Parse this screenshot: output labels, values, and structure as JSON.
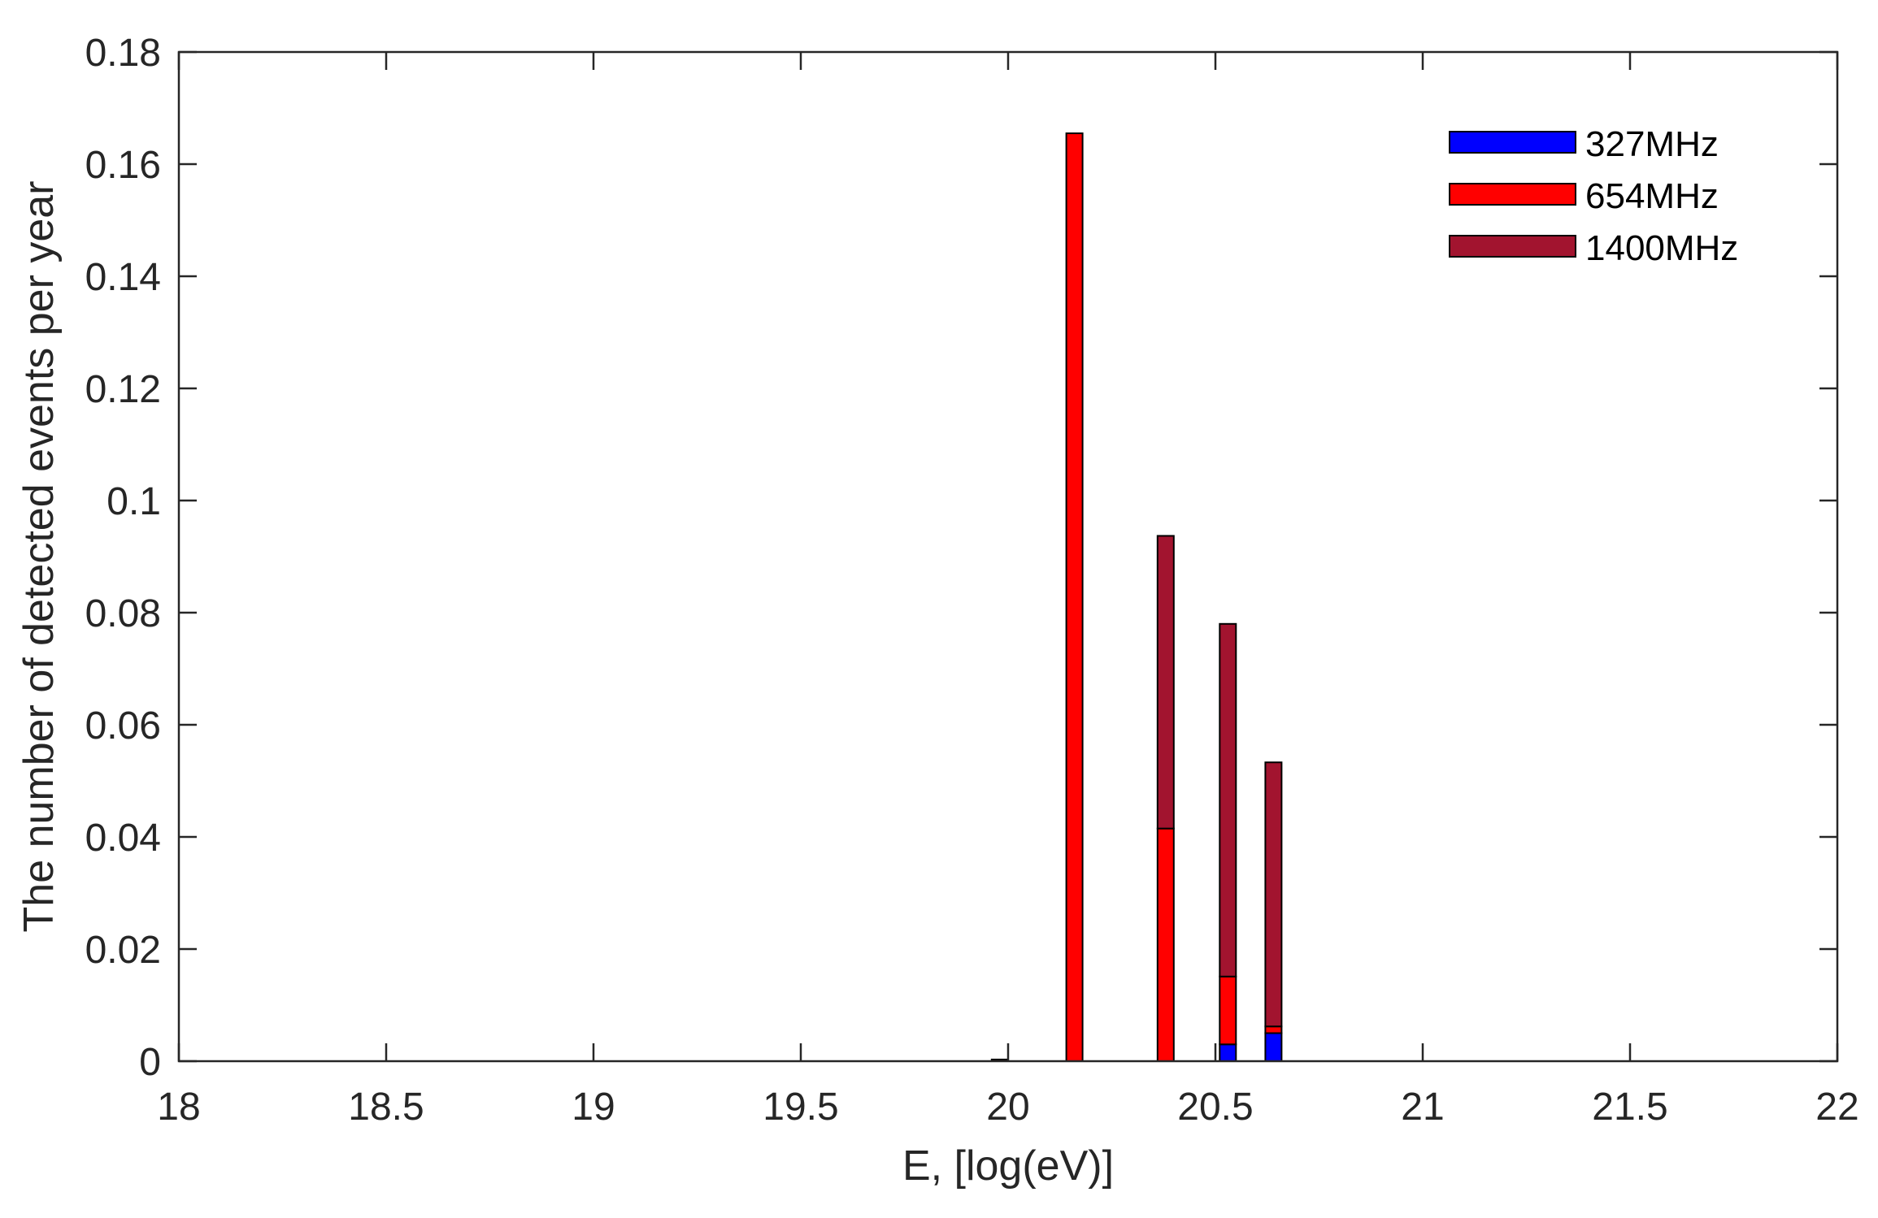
{
  "chart_data": {
    "type": "bar",
    "stacked": true,
    "title": "",
    "xlabel": "E, [log(eV)]",
    "ylabel": "The number of detected events per year",
    "xlim": [
      18,
      22
    ],
    "ylim": [
      0,
      0.18
    ],
    "xticks": [
      "18",
      "18.5",
      "19",
      "19.5",
      "20",
      "20.5",
      "21",
      "21.5",
      "22"
    ],
    "yticks": [
      "0",
      "0.02",
      "0.04",
      "0.06",
      "0.08",
      "0.1",
      "0.12",
      "0.14",
      "0.16",
      "0.18"
    ],
    "x": [
      19.98,
      20.16,
      20.38,
      20.53,
      20.64
    ],
    "series": [
      {
        "name": "327MHz",
        "color": "#0000ff",
        "values": [
          0,
          0,
          0,
          0.003,
          0.005
        ]
      },
      {
        "name": "654MHz",
        "color": "#ff0000",
        "values": [
          0.0003,
          0.1655,
          0.0415,
          0.0121,
          0.0012
        ]
      },
      {
        "name": "1400MHz",
        "color": "#a2142f",
        "values": [
          0,
          0,
          0.0522,
          0.0629,
          0.0471
        ]
      }
    ],
    "legend_position": "top-right",
    "grid": false
  }
}
